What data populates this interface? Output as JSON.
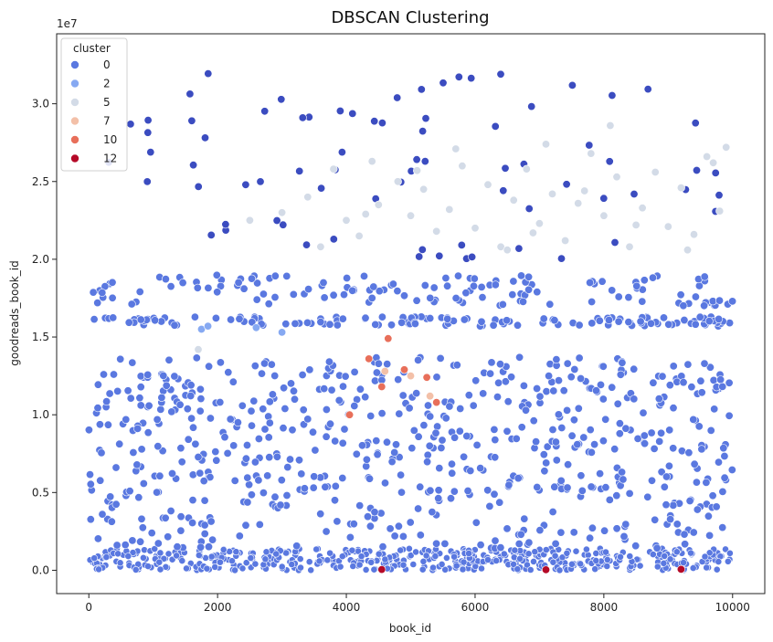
{
  "chart_data": {
    "type": "scatter",
    "title": "DBSCAN Clustering",
    "xlabel": "book_id",
    "ylabel": "goodreads_book_id",
    "y_multiplier": "1e7",
    "xlim": [
      -500,
      10500
    ],
    "ylim": [
      -1500000,
      34500000
    ],
    "xticks": [
      0,
      2000,
      4000,
      6000,
      8000,
      10000
    ],
    "xtick_labels": [
      "0",
      "2000",
      "4000",
      "6000",
      "8000",
      "10000"
    ],
    "yticks": [
      0,
      5000000,
      10000000,
      15000000,
      20000000,
      25000000,
      30000000
    ],
    "ytick_labels": [
      "0.0",
      "0.5",
      "1.0",
      "1.5",
      "2.0",
      "2.5",
      "3.0"
    ],
    "grid": false,
    "legend": {
      "title": "cluster",
      "placement": "top-left",
      "entries": [
        {
          "label": "0",
          "color": "#5a78e0"
        },
        {
          "label": "2",
          "color": "#86a9f2"
        },
        {
          "label": "5",
          "color": "#d3dbe7"
        },
        {
          "label": "7",
          "color": "#f3c0a8"
        },
        {
          "label": "10",
          "color": "#e86f5a"
        },
        {
          "label": "12",
          "color": "#b50927"
        }
      ]
    },
    "series": [
      {
        "name": "5",
        "color": "#d3dbe7",
        "points": [
          [
            4000,
            22500000
          ],
          [
            4200,
            21500000
          ],
          [
            4500,
            23500000
          ],
          [
            4800,
            25000000
          ],
          [
            5000,
            22800000
          ],
          [
            5200,
            24500000
          ],
          [
            5400,
            21800000
          ],
          [
            5600,
            23200000
          ],
          [
            5800,
            26000000
          ],
          [
            6000,
            22000000
          ],
          [
            6200,
            24800000
          ],
          [
            6400,
            20800000
          ],
          [
            6600,
            23800000
          ],
          [
            6800,
            25800000
          ],
          [
            7000,
            22300000
          ],
          [
            7200,
            24200000
          ],
          [
            7400,
            21200000
          ],
          [
            7600,
            23600000
          ],
          [
            7800,
            26800000
          ],
          [
            8000,
            22800000
          ],
          [
            8200,
            25300000
          ],
          [
            8400,
            20800000
          ],
          [
            8600,
            23300000
          ],
          [
            8800,
            25600000
          ],
          [
            9000,
            22100000
          ],
          [
            9200,
            24600000
          ],
          [
            9400,
            21600000
          ],
          [
            9600,
            26600000
          ],
          [
            9800,
            23100000
          ],
          [
            9900,
            27200000
          ],
          [
            3000,
            23000000
          ],
          [
            3400,
            24000000
          ],
          [
            3600,
            20800000
          ],
          [
            3800,
            25800000
          ],
          [
            4400,
            26300000
          ],
          [
            5700,
            27100000
          ],
          [
            6500,
            20600000
          ],
          [
            7100,
            27400000
          ],
          [
            8100,
            28600000
          ],
          [
            9700,
            26200000
          ],
          [
            2500,
            22500000
          ],
          [
            1700,
            14200000
          ],
          [
            4300,
            22900000
          ],
          [
            5100,
            25700000
          ],
          [
            6900,
            21700000
          ],
          [
            7700,
            24400000
          ],
          [
            8500,
            22200000
          ],
          [
            9300,
            20600000
          ]
        ]
      },
      {
        "name": "7",
        "color": "#f3c0a8",
        "points": [
          [
            4600,
            12800000
          ],
          [
            5000,
            12500000
          ],
          [
            5300,
            11200000
          ]
        ]
      },
      {
        "name": "10",
        "color": "#e86f5a",
        "points": [
          [
            4050,
            10000000
          ],
          [
            4350,
            13600000
          ],
          [
            4550,
            11800000
          ],
          [
            4650,
            14900000
          ],
          [
            4900,
            12900000
          ],
          [
            5250,
            12400000
          ],
          [
            5400,
            10800000
          ]
        ]
      },
      {
        "name": "2",
        "color": "#86a9f2",
        "points": [
          [
            1750,
            15500000
          ],
          [
            1850,
            15700000
          ],
          [
            2600,
            15600000
          ],
          [
            3000,
            15300000
          ]
        ]
      },
      {
        "name": "12",
        "color": "#b50927",
        "points": [
          [
            4550,
            50000
          ],
          [
            7100,
            30000
          ],
          [
            9200,
            60000
          ]
        ]
      }
    ]
  }
}
